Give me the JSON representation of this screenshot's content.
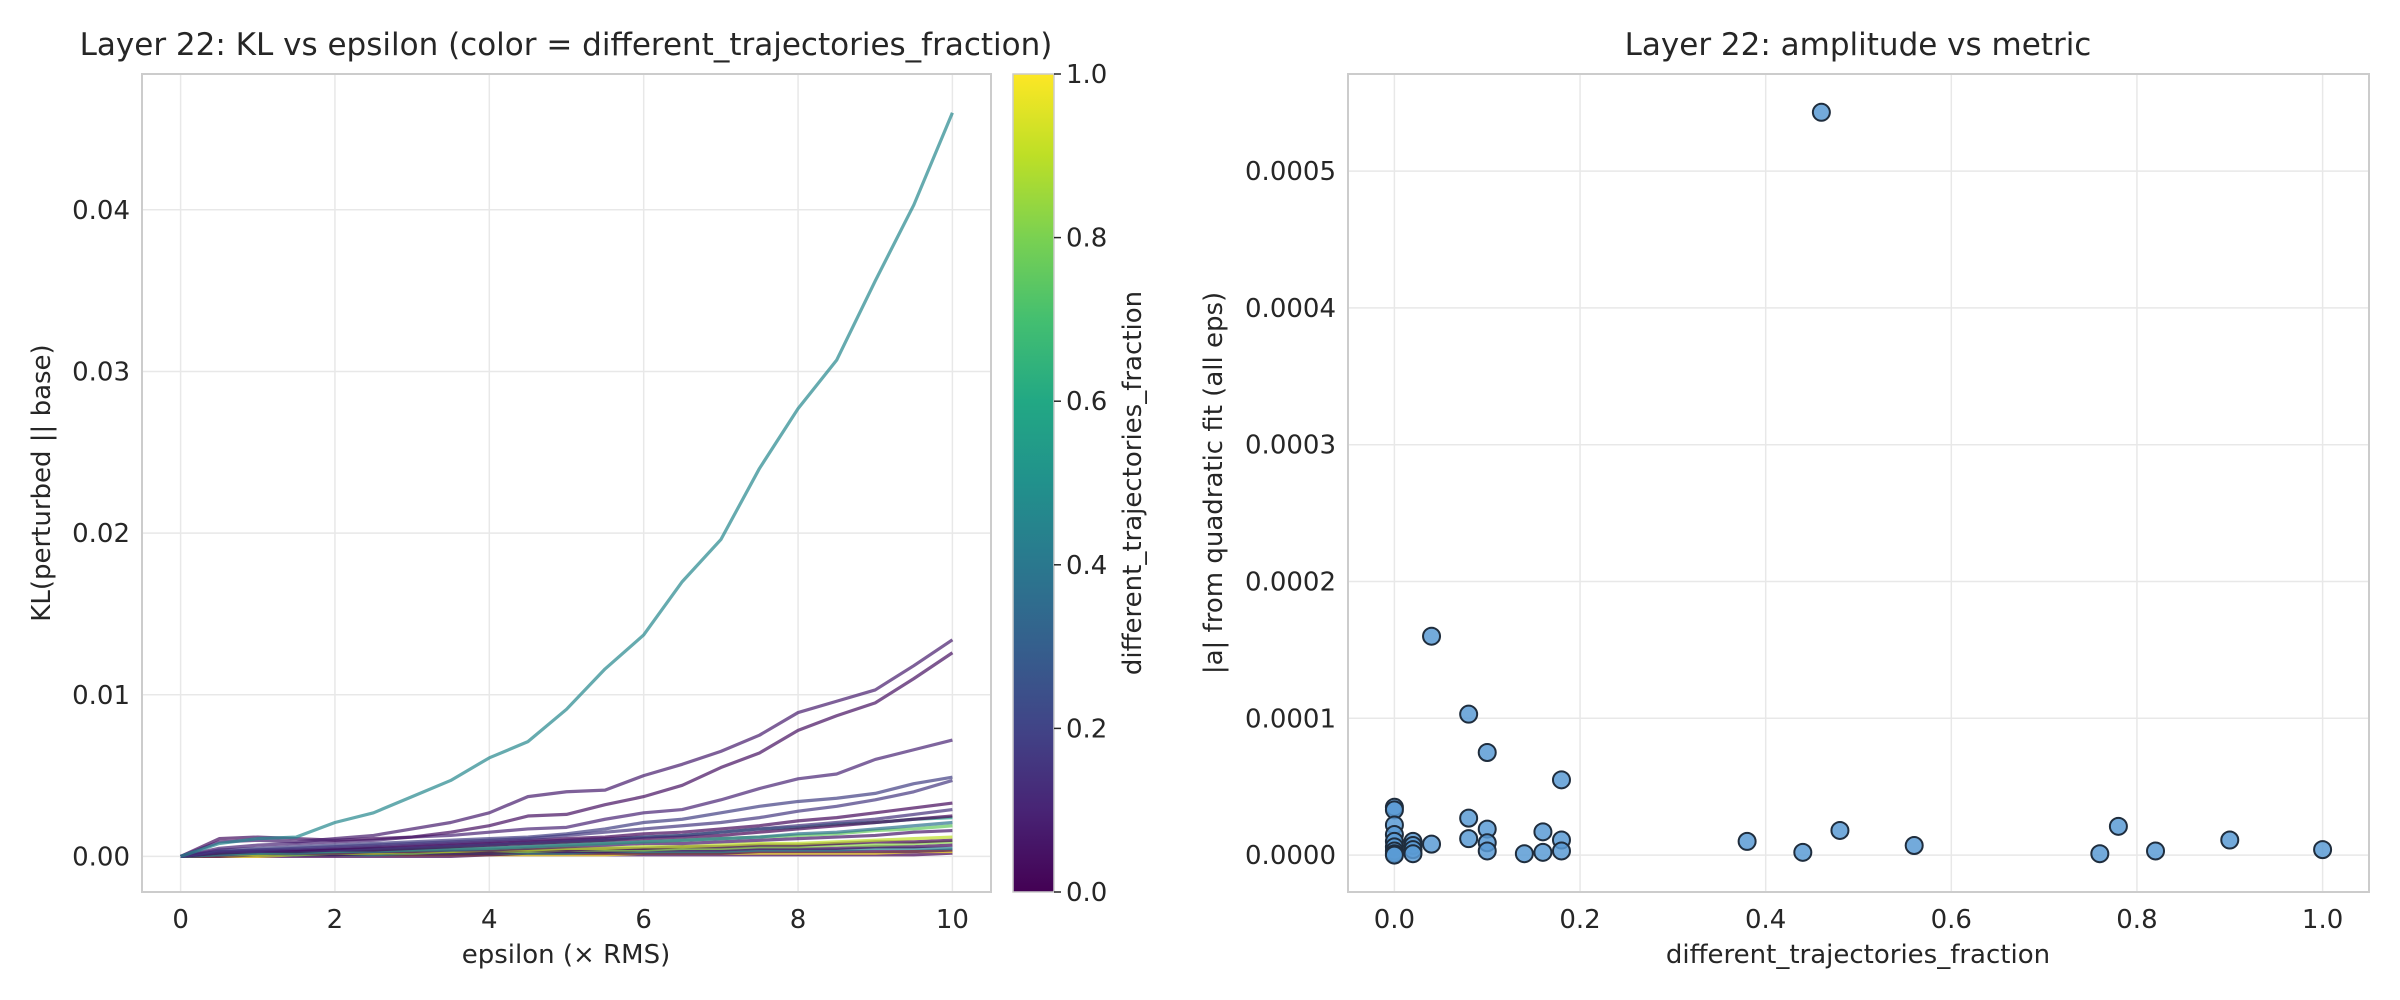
{
  "chart_data": [
    {
      "type": "line",
      "title": "Layer 22: KL vs epsilon (color = different_trajectories_fraction)",
      "xlabel": "epsilon (× RMS)",
      "ylabel": "KL(perturbed || base)",
      "xlim": [
        -0.5,
        10.5
      ],
      "ylim": [
        -0.0022,
        0.0484
      ],
      "xticks": [
        0,
        2,
        4,
        6,
        8,
        10
      ],
      "xtick_labels": [
        "0",
        "2",
        "4",
        "6",
        "8",
        "10"
      ],
      "yticks": [
        0,
        0.01,
        0.02,
        0.03,
        0.04
      ],
      "ytick_labels": [
        "0.00",
        "0.01",
        "0.02",
        "0.03",
        "0.04"
      ],
      "grid": true,
      "x": [
        0,
        0.5,
        1,
        1.5,
        2,
        2.5,
        3,
        3.5,
        4,
        4.5,
        5,
        5.5,
        6,
        6.5,
        7,
        7.5,
        8,
        8.5,
        9,
        9.5,
        10
      ],
      "colormap": "viridis",
      "colorbar": {
        "label": "different_trajectories_fraction",
        "range": [
          0,
          1
        ],
        "ticks": [
          0,
          0.2,
          0.4,
          0.6,
          0.8,
          1.0
        ],
        "tick_labels": [
          "0.0",
          "0.2",
          "0.4",
          "0.6",
          "0.8",
          "1.0"
        ]
      },
      "series": [
        {
          "color_value": 0.46,
          "values": [
            0,
            0.0008,
            0.0011,
            0.0012,
            0.0021,
            0.0027,
            0.0037,
            0.0047,
            0.0061,
            0.0071,
            0.0091,
            0.0116,
            0.0137,
            0.017,
            0.0196,
            0.024,
            0.0277,
            0.0307,
            0.0356,
            0.0403,
            0.046
          ]
        },
        {
          "color_value": 0.08,
          "values": [
            0,
            0.0009,
            0.001,
            0.0009,
            0.0011,
            0.0013,
            0.0017,
            0.0021,
            0.0027,
            0.0037,
            0.004,
            0.0041,
            0.005,
            0.0057,
            0.0065,
            0.0075,
            0.0089,
            0.0096,
            0.0103,
            0.0118,
            0.0134
          ]
        },
        {
          "color_value": 0.04,
          "values": [
            0,
            0.0011,
            0.0012,
            0.0011,
            0.001,
            0.0011,
            0.0012,
            0.0015,
            0.0019,
            0.0025,
            0.0026,
            0.0032,
            0.0037,
            0.0044,
            0.0055,
            0.0064,
            0.0078,
            0.0087,
            0.0095,
            0.011,
            0.0126
          ]
        },
        {
          "color_value": 0.1,
          "values": [
            0,
            0.0005,
            0.0007,
            0.0008,
            0.0009,
            0.001,
            0.0012,
            0.0013,
            0.0015,
            0.0017,
            0.0018,
            0.0023,
            0.0027,
            0.0029,
            0.0035,
            0.0042,
            0.0048,
            0.0051,
            0.006,
            0.0066,
            0.0072
          ]
        },
        {
          "color_value": 0.18,
          "values": [
            0,
            0.0004,
            0.0005,
            0.0006,
            0.0007,
            0.0008,
            0.0009,
            0.001,
            0.0011,
            0.0012,
            0.0014,
            0.0017,
            0.0021,
            0.0023,
            0.0027,
            0.0031,
            0.0034,
            0.0036,
            0.0039,
            0.0045,
            0.0049
          ]
        },
        {
          "color_value": 0.16,
          "values": [
            0,
            0.0003,
            0.0004,
            0.0005,
            0.0006,
            0.0007,
            0.0008,
            0.0009,
            0.001,
            0.0011,
            0.0013,
            0.0015,
            0.0017,
            0.0019,
            0.0021,
            0.0024,
            0.0028,
            0.0031,
            0.0035,
            0.004,
            0.0047
          ]
        },
        {
          "color_value": 0.02,
          "values": [
            0,
            0.0003,
            0.0004,
            0.0004,
            0.0005,
            0.0006,
            0.0007,
            0.0008,
            0.0009,
            0.001,
            0.0011,
            0.0012,
            0.0014,
            0.0015,
            0.0017,
            0.0019,
            0.0022,
            0.0024,
            0.0027,
            0.003,
            0.0033
          ]
        },
        {
          "color_value": 0.14,
          "values": [
            0,
            0.0003,
            0.0003,
            0.0004,
            0.0004,
            0.0005,
            0.0006,
            0.0007,
            0.0008,
            0.0009,
            0.001,
            0.0011,
            0.0012,
            0.0013,
            0.0015,
            0.0017,
            0.0019,
            0.0021,
            0.0023,
            0.0026,
            0.0029
          ]
        },
        {
          "color_value": 0.0,
          "values": [
            0,
            0.0002,
            0.0003,
            0.0003,
            0.0004,
            0.0004,
            0.0005,
            0.0006,
            0.0007,
            0.0008,
            0.0009,
            0.001,
            0.0011,
            0.0012,
            0.0013,
            0.0015,
            0.0017,
            0.0019,
            0.0021,
            0.0023,
            0.0025
          ]
        },
        {
          "color_value": 0.56,
          "values": [
            0,
            0.0002,
            0.0003,
            0.0003,
            0.0004,
            0.0005,
            0.0005,
            0.0006,
            0.0007,
            0.0008,
            0.0009,
            0.001,
            0.0012,
            0.0013,
            0.0015,
            0.0017,
            0.0018,
            0.002,
            0.0021,
            0.0023,
            0.0024
          ]
        },
        {
          "color_value": 0.38,
          "values": [
            0,
            0.0001,
            0.0002,
            0.0002,
            0.0003,
            0.0003,
            0.0004,
            0.0004,
            0.0005,
            0.0006,
            0.0007,
            0.0008,
            0.0009,
            0.001,
            0.0011,
            0.0012,
            0.0014,
            0.0015,
            0.0017,
            0.0019,
            0.0021
          ]
        },
        {
          "color_value": 0.76,
          "values": [
            0,
            0.0002,
            0.0002,
            0.0003,
            0.0003,
            0.0004,
            0.0004,
            0.0005,
            0.0005,
            0.0006,
            0.0007,
            0.0008,
            0.0009,
            0.001,
            0.0011,
            0.0012,
            0.0013,
            0.0014,
            0.0016,
            0.0017,
            0.0019
          ]
        },
        {
          "color_value": 0.06,
          "values": [
            0,
            0.0001,
            0.0002,
            0.0002,
            0.0002,
            0.0003,
            0.0003,
            0.0004,
            0.0004,
            0.0005,
            0.0006,
            0.0007,
            0.0008,
            0.0008,
            0.0009,
            0.001,
            0.0011,
            0.0012,
            0.0013,
            0.0015,
            0.0016
          ]
        },
        {
          "color_value": 0.9,
          "values": [
            0,
            0.0001,
            0.0001,
            0.0002,
            0.0002,
            0.0002,
            0.0003,
            0.0003,
            0.0004,
            0.0004,
            0.0005,
            0.0005,
            0.0006,
            0.0006,
            0.0007,
            0.0008,
            0.0008,
            0.0009,
            0.001,
            0.0011,
            0.0012
          ]
        },
        {
          "color_value": 0.0,
          "values": [
            0,
            0.0001,
            0.0001,
            0.0002,
            0.0002,
            0.0002,
            0.0003,
            0.0003,
            0.0003,
            0.0004,
            0.0004,
            0.0005,
            0.0005,
            0.0006,
            0.0006,
            0.0007,
            0.0007,
            0.0008,
            0.0009,
            0.0009,
            0.001
          ]
        },
        {
          "color_value": 0.82,
          "values": [
            0,
            0.0001,
            0.0001,
            0.0001,
            0.0002,
            0.0002,
            0.0002,
            0.0003,
            0.0003,
            0.0003,
            0.0004,
            0.0004,
            0.0004,
            0.0005,
            0.0005,
            0.0006,
            0.0006,
            0.0007,
            0.0007,
            0.0008,
            0.0009
          ]
        },
        {
          "color_value": 0.02,
          "values": [
            0,
            0.0001,
            0.0001,
            0.0001,
            0.0001,
            0.0002,
            0.0002,
            0.0002,
            0.0002,
            0.0003,
            0.0003,
            0.0003,
            0.0004,
            0.0004,
            0.0004,
            0.0005,
            0.0005,
            0.0005,
            0.0006,
            0.0006,
            0.0007
          ]
        },
        {
          "color_value": 0.44,
          "values": [
            0,
            0.0001,
            0.0001,
            0.0001,
            0.0001,
            0.0001,
            0.0002,
            0.0002,
            0.0002,
            0.0002,
            0.0002,
            0.0003,
            0.0003,
            0.0003,
            0.0003,
            0.0004,
            0.0004,
            0.0004,
            0.0005,
            0.0005,
            0.0005
          ]
        },
        {
          "color_value": 0.0,
          "values": [
            0,
            0.0,
            0.0001,
            0.0001,
            0.0001,
            0.0001,
            0.0001,
            0.0001,
            0.0001,
            0.0002,
            0.0002,
            0.0002,
            0.0002,
            0.0002,
            0.0002,
            0.0003,
            0.0003,
            0.0003,
            0.0003,
            0.0003,
            0.0004
          ]
        },
        {
          "color_value": 1.0,
          "values": [
            0,
            0.0,
            0.0,
            0.0001,
            0.0001,
            0.0001,
            0.0001,
            0.0001,
            0.0001,
            0.0001,
            0.0001,
            0.0001,
            0.0002,
            0.0002,
            0.0002,
            0.0002,
            0.0002,
            0.0002,
            0.0002,
            0.0003,
            0.0003
          ]
        },
        {
          "color_value": 0.0,
          "values": [
            0,
            0.0,
            0.0,
            0.0,
            0.0,
            0.0,
            0.0,
            0.0,
            0.0001,
            0.0001,
            0.0001,
            0.0001,
            0.0001,
            0.0001,
            0.0001,
            0.0001,
            0.0001,
            0.0001,
            0.0001,
            0.0001,
            0.0002
          ]
        }
      ]
    },
    {
      "type": "scatter",
      "title": "Layer 22: amplitude vs metric",
      "xlabel": "different_trajectories_fraction",
      "ylabel": "|a| from quadratic fit (all eps)",
      "xlim": [
        -0.05,
        1.05
      ],
      "ylim": [
        -2.7e-05,
        0.000571
      ],
      "xticks": [
        0,
        0.2,
        0.4,
        0.6,
        0.8,
        1.0
      ],
      "xtick_labels": [
        "0.0",
        "0.2",
        "0.4",
        "0.6",
        "0.8",
        "1.0"
      ],
      "yticks": [
        0,
        0.0001,
        0.0002,
        0.0003,
        0.0004,
        0.0005
      ],
      "ytick_labels": [
        "0.0000",
        "0.0001",
        "0.0002",
        "0.0003",
        "0.0004",
        "0.0005"
      ],
      "grid": true,
      "marker_color": "#5b9bd5",
      "points": [
        {
          "x": 0.0,
          "y": 3.5e-05
        },
        {
          "x": 0.0,
          "y": 3.3e-05
        },
        {
          "x": 0.0,
          "y": 2.2e-05
        },
        {
          "x": 0.0,
          "y": 1.5e-05
        },
        {
          "x": 0.0,
          "y": 1e-05
        },
        {
          "x": 0.0,
          "y": 6e-06
        },
        {
          "x": 0.0,
          "y": 3e-06
        },
        {
          "x": 0.0,
          "y": 1e-06
        },
        {
          "x": 0.0,
          "y": 0.0
        },
        {
          "x": 0.02,
          "y": 1e-05
        },
        {
          "x": 0.02,
          "y": 7e-06
        },
        {
          "x": 0.02,
          "y": 4e-06
        },
        {
          "x": 0.02,
          "y": 1e-06
        },
        {
          "x": 0.04,
          "y": 0.00016
        },
        {
          "x": 0.04,
          "y": 8e-06
        },
        {
          "x": 0.08,
          "y": 0.000103
        },
        {
          "x": 0.08,
          "y": 2.7e-05
        },
        {
          "x": 0.08,
          "y": 1.2e-05
        },
        {
          "x": 0.1,
          "y": 7.5e-05
        },
        {
          "x": 0.1,
          "y": 1.9e-05
        },
        {
          "x": 0.1,
          "y": 9e-06
        },
        {
          "x": 0.1,
          "y": 3e-06
        },
        {
          "x": 0.14,
          "y": 1e-06
        },
        {
          "x": 0.16,
          "y": 1.7e-05
        },
        {
          "x": 0.16,
          "y": 2e-06
        },
        {
          "x": 0.18,
          "y": 5.5e-05
        },
        {
          "x": 0.18,
          "y": 1.1e-05
        },
        {
          "x": 0.18,
          "y": 3e-06
        },
        {
          "x": 0.38,
          "y": 1e-05
        },
        {
          "x": 0.44,
          "y": 2e-06
        },
        {
          "x": 0.46,
          "y": 0.000543
        },
        {
          "x": 0.48,
          "y": 1.8e-05
        },
        {
          "x": 0.56,
          "y": 7e-06
        },
        {
          "x": 0.76,
          "y": 1e-06
        },
        {
          "x": 0.78,
          "y": 2.1e-05
        },
        {
          "x": 0.82,
          "y": 3e-06
        },
        {
          "x": 0.9,
          "y": 1.1e-05
        },
        {
          "x": 1.0,
          "y": 4e-06
        }
      ]
    }
  ]
}
